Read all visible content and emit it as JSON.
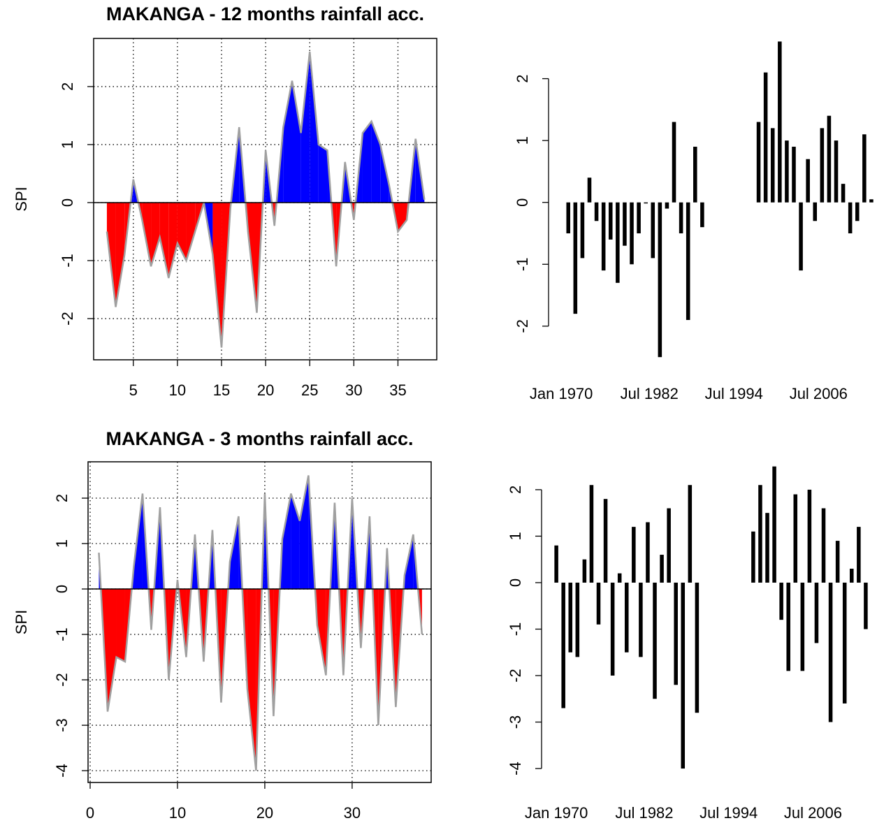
{
  "chart_data": [
    {
      "type": "area",
      "title": "MAKANGA - 12 months rainfall acc.",
      "ylabel": "SPI",
      "x": [
        2,
        3,
        4,
        5,
        6,
        7,
        8,
        9,
        10,
        11,
        12,
        13,
        14,
        15,
        16,
        17,
        18,
        19,
        20,
        21,
        22,
        23,
        24,
        25,
        26,
        27,
        28,
        29,
        30,
        31,
        32,
        33,
        34,
        35,
        36,
        37,
        38
      ],
      "values": [
        -0.5,
        -1.8,
        -0.9,
        0.4,
        -0.3,
        -1.1,
        -0.6,
        -1.3,
        -0.7,
        -1.0,
        -0.5,
        0.0,
        -0.9,
        -2.5,
        -0.1,
        1.3,
        -0.5,
        -1.9,
        0.9,
        -0.4,
        1.3,
        2.1,
        1.2,
        2.6,
        1.0,
        0.9,
        -1.1,
        0.7,
        -0.3,
        1.2,
        1.4,
        1.0,
        0.3,
        -0.5,
        -0.3,
        1.1,
        0.05
      ],
      "xlim": [
        0.5,
        39.4
      ],
      "ylim": [
        -2.71,
        2.83
      ],
      "xticks": [
        5,
        10,
        15,
        20,
        25,
        30,
        35
      ],
      "yticks": [
        -2,
        -1,
        0,
        1,
        2
      ],
      "grid": true,
      "positive_color": "#0000ff",
      "negative_color": "#ff0000",
      "line_color": "#a0a0a0"
    },
    {
      "type": "bar",
      "x": [
        1971,
        1972,
        1973,
        1974,
        1975,
        1976,
        1977,
        1978,
        1979,
        1980,
        1981,
        1982,
        1983,
        1984,
        1985,
        1986,
        1987,
        1988,
        1989,
        1990,
        1998,
        1999,
        2000,
        2001,
        2002,
        2003,
        2004,
        2005,
        2006,
        2007,
        2008,
        2009,
        2010,
        2011,
        2012,
        2013,
        2014
      ],
      "values": [
        -0.5,
        -1.8,
        -0.9,
        0.4,
        -0.3,
        -1.1,
        -0.6,
        -1.3,
        -0.7,
        -1.0,
        -0.5,
        0.0,
        -0.9,
        -2.5,
        -0.1,
        1.3,
        -0.5,
        -1.9,
        0.9,
        -0.4,
        1.3,
        2.1,
        1.2,
        2.6,
        1.0,
        0.9,
        -1.1,
        0.7,
        -0.3,
        1.2,
        1.4,
        1.0,
        0.3,
        -0.5,
        -0.3,
        1.1,
        0.05
      ],
      "xlim": [
        1968.2,
        2014.8
      ],
      "ylim": [
        -2.6,
        2.65
      ],
      "xticks": [
        {
          "value": 1970,
          "label": "Jan 1970"
        },
        {
          "value": 1982.5,
          "label": "Jul 1982"
        },
        {
          "value": 1994.5,
          "label": "Jul 1994"
        },
        {
          "value": 2006.5,
          "label": "Jul 2006"
        }
      ],
      "yticks": [
        -2,
        -1,
        0,
        1,
        2
      ],
      "color": "#000000"
    },
    {
      "type": "area",
      "title": "MAKANGA - 3 months rainfall acc.",
      "ylabel": "SPI",
      "x": [
        1,
        2,
        3,
        4,
        5,
        6,
        7,
        8,
        9,
        10,
        11,
        12,
        13,
        14,
        15,
        16,
        17,
        18,
        19,
        20,
        21,
        22,
        23,
        24,
        25,
        26,
        27,
        28,
        29,
        30,
        31,
        32,
        33,
        34,
        35,
        36,
        37,
        38
      ],
      "values": [
        0.8,
        -2.7,
        -1.5,
        -1.6,
        0.5,
        2.1,
        -0.9,
        1.8,
        -2.0,
        0.2,
        -1.5,
        1.2,
        -1.6,
        1.3,
        -2.5,
        0.6,
        1.6,
        -2.2,
        -4.0,
        2.1,
        -2.8,
        1.1,
        2.1,
        1.5,
        2.5,
        -0.8,
        -1.9,
        1.9,
        -1.9,
        2.0,
        -1.3,
        1.6,
        -3.0,
        0.9,
        -2.6,
        0.3,
        1.2,
        -1.0
      ],
      "xlim": [
        -0.24,
        39.05
      ],
      "ylim": [
        -4.26,
        2.8
      ],
      "xticks": [
        0,
        10,
        20,
        30
      ],
      "yticks": [
        -4,
        -3,
        -2,
        -1,
        0,
        1,
        2
      ],
      "grid": true,
      "positive_color": "#0000ff",
      "negative_color": "#ff0000",
      "line_color": "#a0a0a0"
    },
    {
      "type": "bar",
      "x": [
        1970,
        1971,
        1972,
        1973,
        1974,
        1975,
        1976,
        1977,
        1978,
        1979,
        1980,
        1981,
        1982,
        1983,
        1984,
        1985,
        1986,
        1987,
        1988,
        1989,
        1990,
        1998,
        1999,
        2000,
        2001,
        2002,
        2003,
        2004,
        2005,
        2006,
        2007,
        2008,
        2009,
        2010,
        2011,
        2012,
        2013,
        2014
      ],
      "values": [
        0.8,
        -2.7,
        -1.5,
        -1.6,
        0.5,
        2.1,
        -0.9,
        1.8,
        -2.0,
        0.2,
        -1.5,
        1.2,
        -1.6,
        1.3,
        -2.5,
        0.6,
        1.6,
        -2.2,
        -4.0,
        2.1,
        -2.8,
        1.1,
        2.1,
        1.5,
        2.5,
        -0.8,
        -1.9,
        1.9,
        -1.9,
        2.0,
        -1.3,
        1.6,
        -3.0,
        0.9,
        -2.6,
        0.3,
        1.2,
        -1.0
      ],
      "xlim": [
        1967.9,
        2015.6
      ],
      "ylim": [
        -4.3,
        2.6
      ],
      "xticks": [
        {
          "value": 1970,
          "label": "Jan 1970"
        },
        {
          "value": 1982.5,
          "label": "Jul 1982"
        },
        {
          "value": 1994.5,
          "label": "Jul 1994"
        },
        {
          "value": 2006.5,
          "label": "Jul 2006"
        }
      ],
      "yticks": [
        -4,
        -3,
        -2,
        -1,
        0,
        1,
        2
      ],
      "color": "#000000"
    }
  ]
}
